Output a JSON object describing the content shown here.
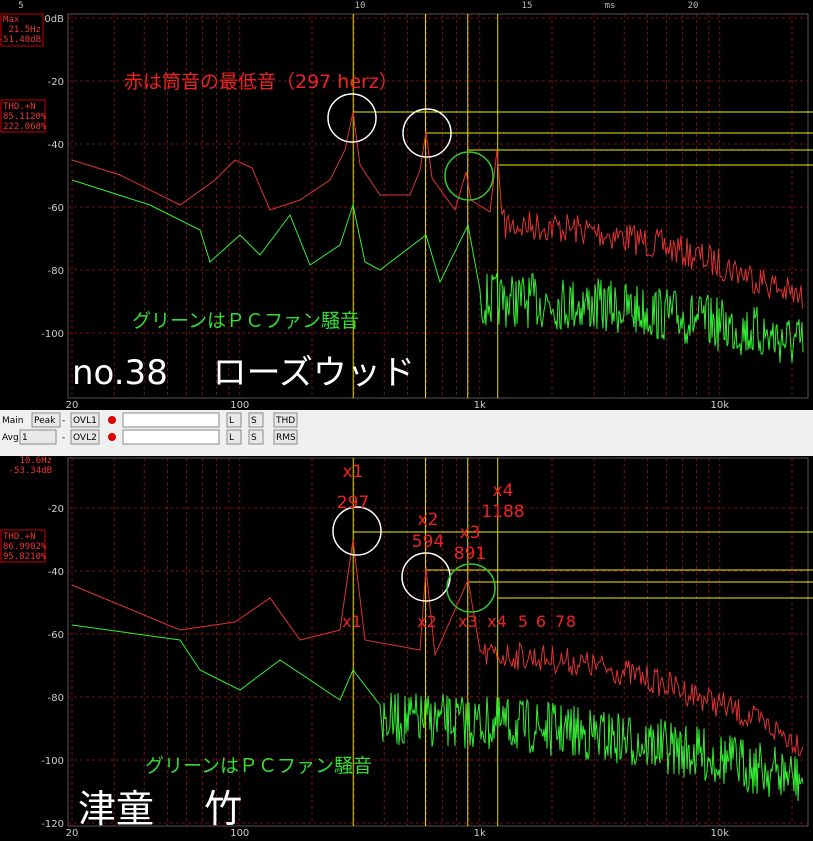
{
  "top_panel": {
    "ruler": [
      "5",
      "10",
      "15",
      "ms",
      "20"
    ],
    "readout": {
      "label": "Max",
      "freq": "21.5Hz",
      "level": "-51.48dB"
    },
    "thd": {
      "label": "THD.+N",
      "v1": "85.1120%",
      "v2": "222.068%"
    },
    "yticks": [
      "0dB",
      "-20",
      "-40",
      "-60",
      "-80",
      "-100"
    ],
    "xticks": [
      "20",
      "100",
      "1k",
      "10k"
    ],
    "red_note": "赤は筒音の最低音（297 herz）",
    "green_note": "グリーンはＰＣファン騒音",
    "title": "no.38　 ローズウッド"
  },
  "toolbar": {
    "row1": [
      "Main",
      "Peak",
      "-",
      "OVL1",
      "L",
      "S",
      "THD"
    ],
    "row2": [
      "Avg:",
      "1",
      "-",
      "OVL2",
      "L",
      "S",
      "RMS"
    ]
  },
  "bottom_panel": {
    "readout": {
      "freq": "10.6Hz",
      "level": "-53.34dB"
    },
    "thd": {
      "label": "THD.+N",
      "v1": "86.9902%",
      "v2": "95.8210%"
    },
    "yticks": [
      "-20",
      "-40",
      "-60",
      "-80",
      "-100",
      "-120"
    ],
    "xticks": [
      "20",
      "100",
      "1k",
      "10k"
    ],
    "harmonics_upper": [
      {
        "n": "x1",
        "freq": "297"
      },
      {
        "n": "x2",
        "freq": "594"
      },
      {
        "n": "x3",
        "freq": "891"
      },
      {
        "n": "x4",
        "freq": "1188"
      }
    ],
    "harmonics_lower": [
      "x1",
      "x2",
      "x3",
      "x4",
      "5",
      "6",
      "7",
      "8"
    ],
    "green_note": "グリーンはＰＣファン騒音",
    "title": "津童　 竹"
  }
}
